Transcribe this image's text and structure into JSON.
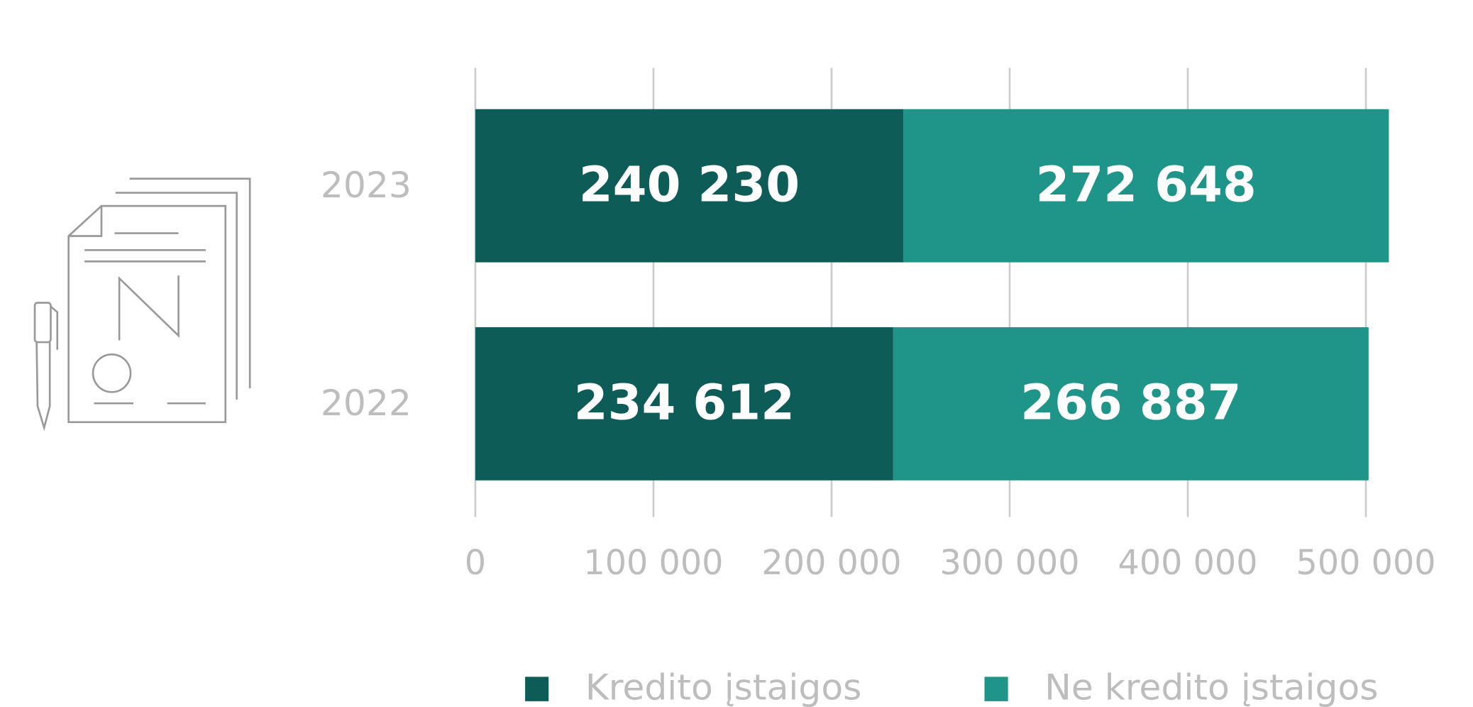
{
  "chart_data": {
    "type": "stacked_barh",
    "categories": [
      "2023",
      "2022"
    ],
    "series": [
      {
        "name": "Kredito įstaigos",
        "color": "#0d5c58",
        "values": [
          240230,
          234612
        ],
        "value_labels": [
          "240 230",
          "234 612"
        ]
      },
      {
        "name": "Ne kredito įstaigos",
        "color": "#1f9488",
        "values": [
          272648,
          266887
        ],
        "value_labels": [
          "272 648",
          "266 887"
        ]
      }
    ],
    "xlim": [
      0,
      525000
    ],
    "xticks": [
      0,
      {
        "value": 100000,
        "label": "100 000"
      },
      {
        "value": 200000,
        "label": "200 000"
      },
      {
        "value": 300000,
        "label": "300 000"
      },
      {
        "value": 400000,
        "label": "400 000"
      },
      {
        "value": 500000,
        "label": "500 000"
      }
    ],
    "grid": true
  }
}
